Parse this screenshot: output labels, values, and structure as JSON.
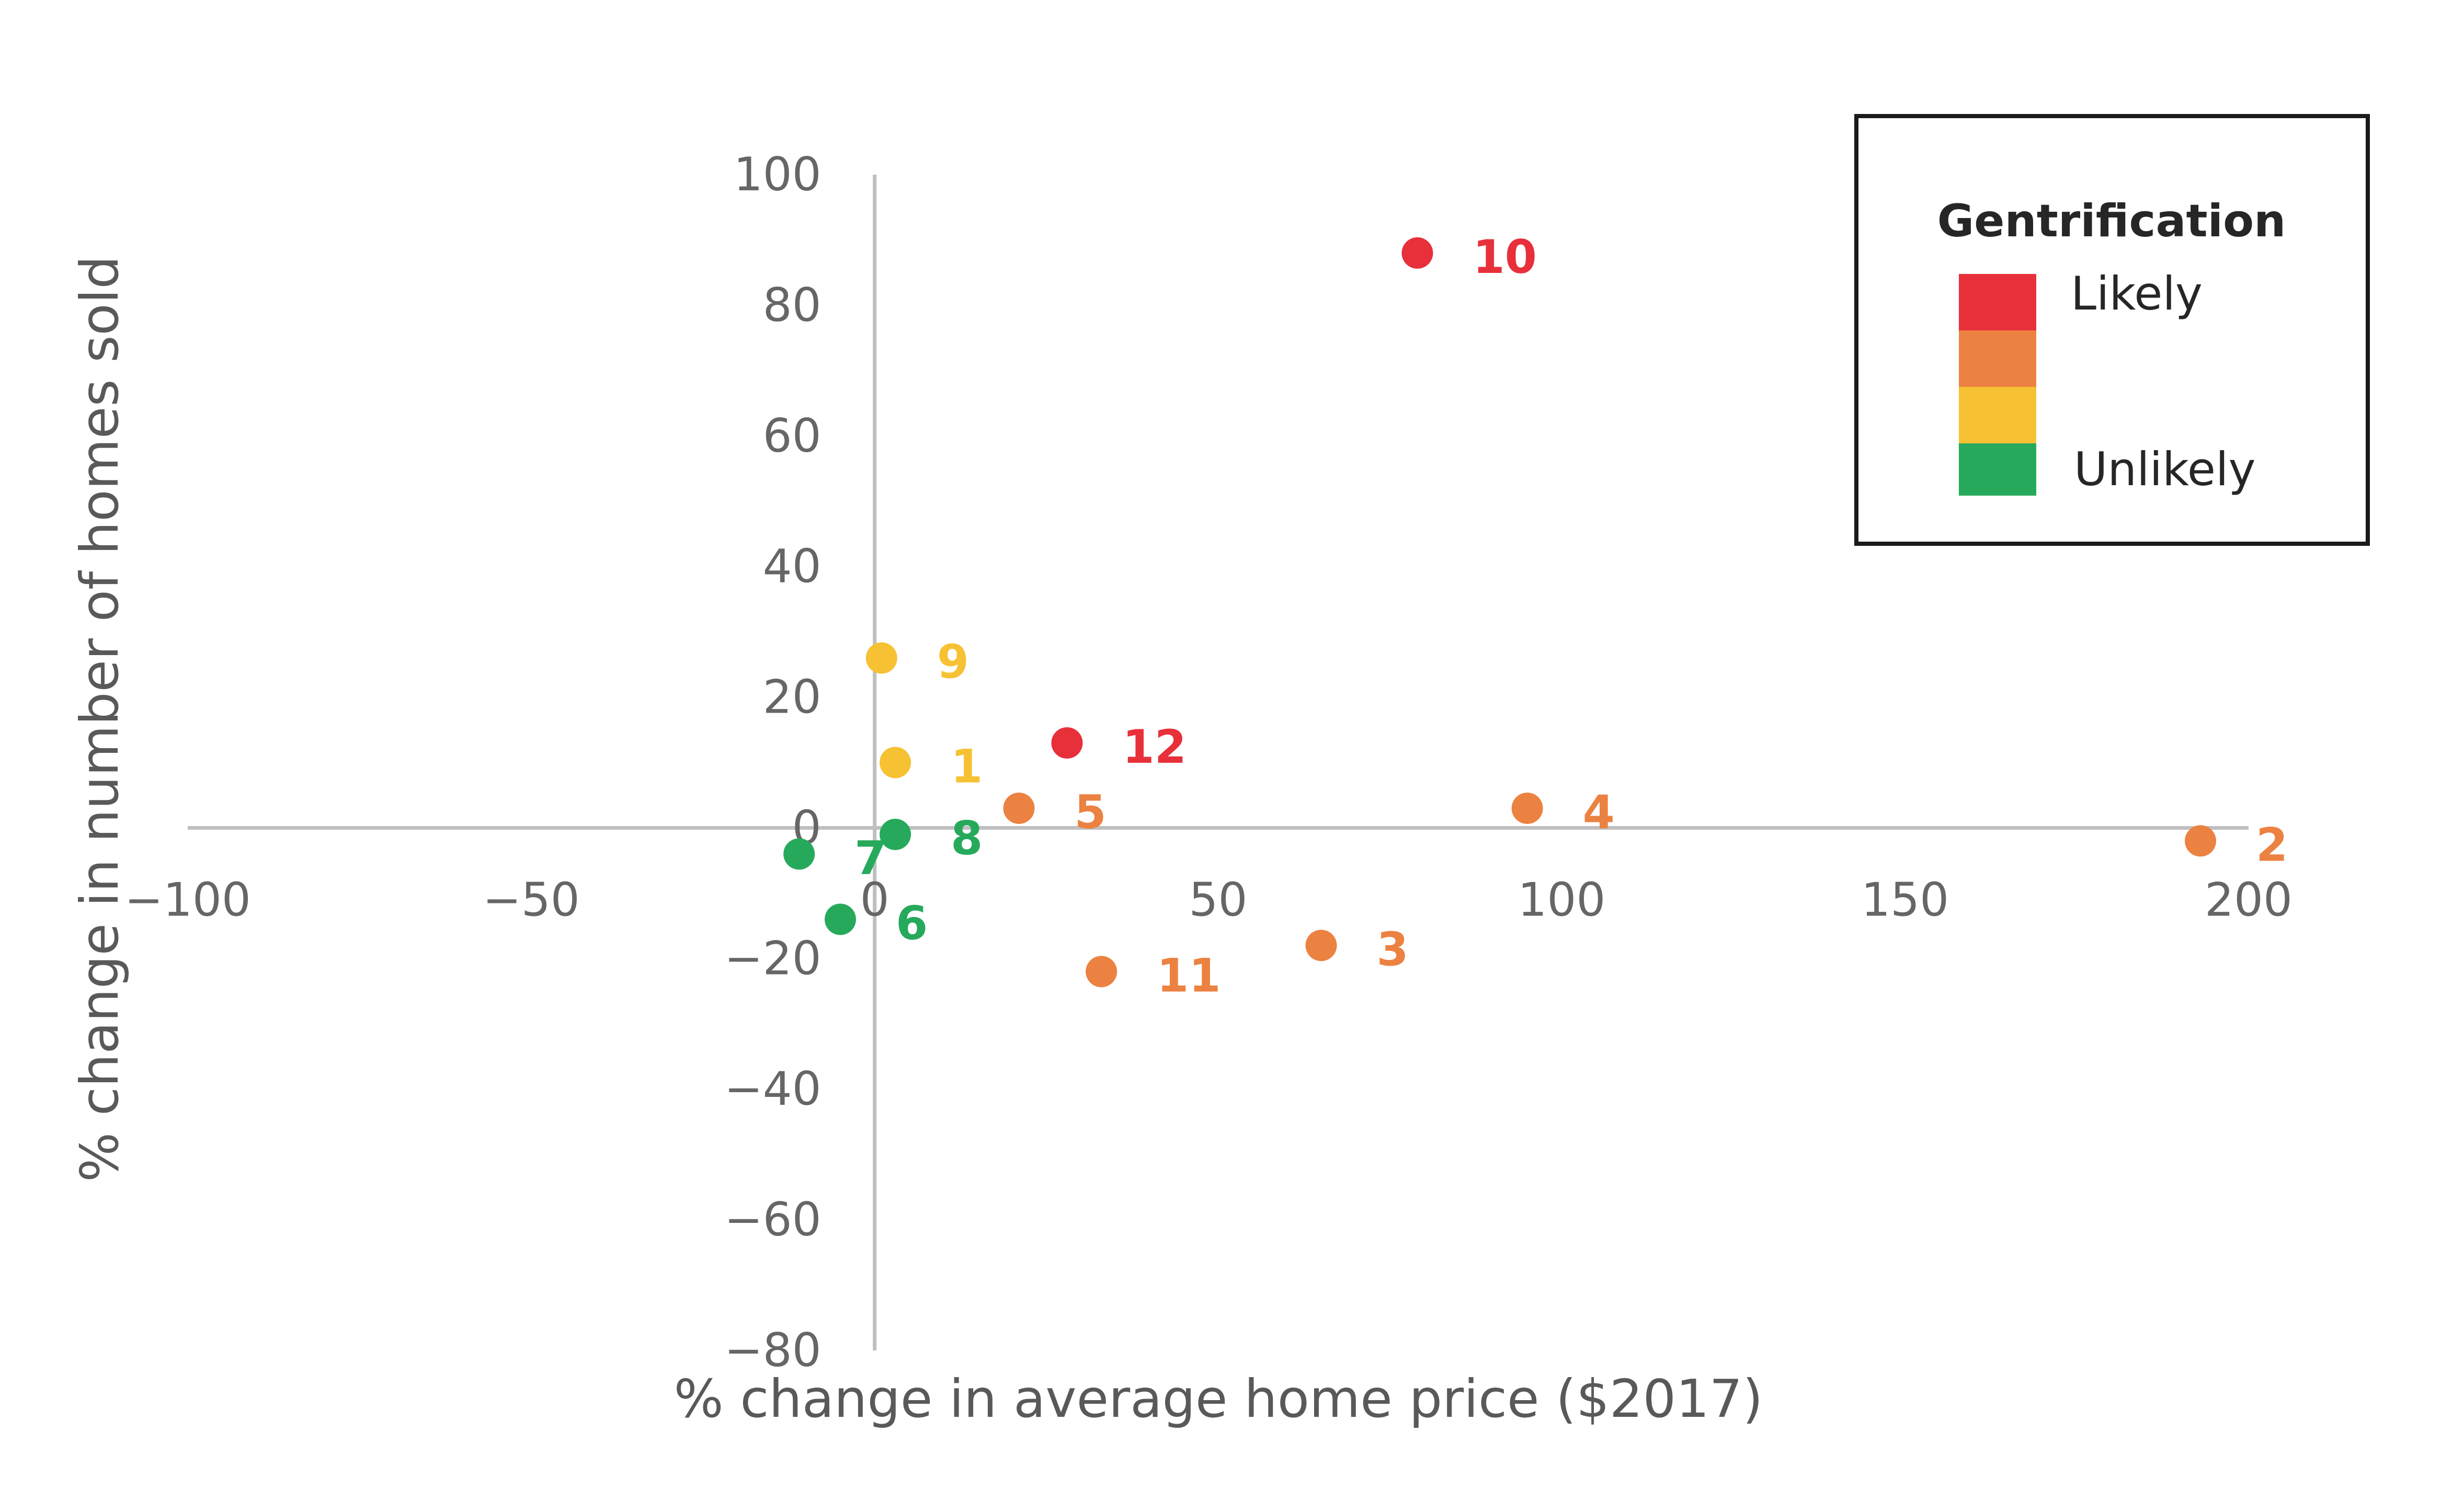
{
  "chart_data": {
    "type": "scatter",
    "title": "",
    "xlabel": "% change in average home price ($2017)",
    "ylabel": "% change in number of homes sold",
    "xlim": [
      -100,
      200
    ],
    "ylim": [
      -80,
      100
    ],
    "xticks": [
      -100,
      -50,
      0,
      50,
      100,
      150,
      200
    ],
    "yticks": [
      -80,
      -60,
      -40,
      -20,
      0,
      20,
      40,
      60,
      80,
      100
    ],
    "xtick_labels": [
      "−100",
      "−50",
      "0",
      "50",
      "100",
      "150",
      "200"
    ],
    "ytick_labels": [
      "−80",
      "−60",
      "−40",
      "−20",
      "0",
      "20",
      "40",
      "60",
      "80",
      "100"
    ],
    "points": [
      {
        "label": "1",
        "x": 3,
        "y": 10,
        "category": "moderate-low"
      },
      {
        "label": "2",
        "x": 193,
        "y": -2,
        "category": "moderate-high"
      },
      {
        "label": "3",
        "x": 65,
        "y": -18,
        "category": "moderate-high"
      },
      {
        "label": "4",
        "x": 95,
        "y": 3,
        "category": "moderate-high"
      },
      {
        "label": "5",
        "x": 21,
        "y": 3,
        "category": "moderate-high"
      },
      {
        "label": "6",
        "x": -5,
        "y": -14,
        "category": "unlikely"
      },
      {
        "label": "7",
        "x": -11,
        "y": -4,
        "category": "unlikely"
      },
      {
        "label": "8",
        "x": 3,
        "y": -1,
        "category": "unlikely"
      },
      {
        "label": "9",
        "x": 1,
        "y": 26,
        "category": "moderate-low"
      },
      {
        "label": "10",
        "x": 79,
        "y": 88,
        "category": "likely"
      },
      {
        "label": "11",
        "x": 33,
        "y": -22,
        "category": "moderate-high"
      },
      {
        "label": "12",
        "x": 28,
        "y": 13,
        "category": "likely"
      }
    ],
    "legend": {
      "title": "Gentrification",
      "position": "top-right",
      "entries": [
        {
          "category": "likely",
          "label": "Likely",
          "color": "#e8303a"
        },
        {
          "category": "moderate-high",
          "label": "",
          "color": "#ec8241"
        },
        {
          "category": "moderate-low",
          "label": "",
          "color": "#f6c132"
        },
        {
          "category": "unlikely",
          "label": "Unlikely",
          "color": "#27a95c"
        }
      ]
    },
    "colors": {
      "likely": "#e8303a",
      "moderate-high": "#ec8241",
      "moderate-low": "#f6c132",
      "unlikely": "#27a95c",
      "axis": "#bfbfbf",
      "tick_text": "#666666"
    }
  }
}
